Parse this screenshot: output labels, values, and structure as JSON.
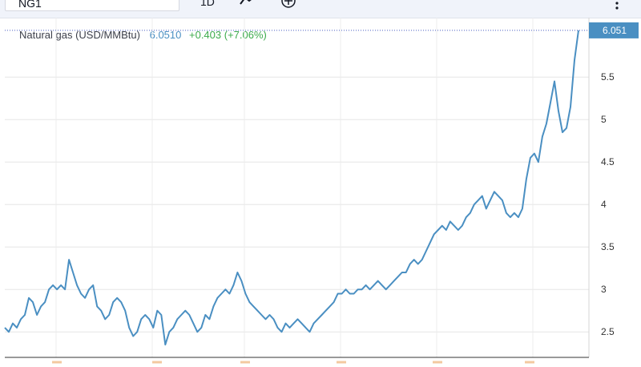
{
  "toolbar": {
    "symbol": "NG1",
    "interval": "1D",
    "chart_icon": "line-chart-icon",
    "compare_icon": "plus-circle-icon",
    "menu_icon": "vertical-dots-icon"
  },
  "legend": {
    "name": "Natural gas (USD/MMBtu)",
    "price": "6.0510",
    "change": "+0.403 (+7.06%)"
  },
  "colors": {
    "line": "#4a8fc2",
    "positive": "#3cab4c",
    "price_tag": "#4a8fc2"
  },
  "chart_data": {
    "type": "line",
    "title": "",
    "y_ticks": [
      "2.5",
      "3",
      "3.5",
      "4",
      "4.5",
      "5",
      "5.5"
    ],
    "ylim": [
      2.2,
      6.2
    ],
    "last_value_label": "6.051",
    "series": [
      {
        "values": [
          2.55,
          2.5,
          2.6,
          2.55,
          2.65,
          2.7,
          2.9,
          2.85,
          2.7,
          2.8,
          2.85,
          3.0,
          3.05,
          3.0,
          3.05,
          3.0,
          3.35,
          3.2,
          3.05,
          2.95,
          2.9,
          3.0,
          3.05,
          2.8,
          2.75,
          2.65,
          2.7,
          2.85,
          2.9,
          2.85,
          2.75,
          2.55,
          2.45,
          2.5,
          2.65,
          2.7,
          2.65,
          2.55,
          2.75,
          2.7,
          2.35,
          2.5,
          2.55,
          2.65,
          2.7,
          2.75,
          2.7,
          2.6,
          2.5,
          2.55,
          2.7,
          2.65,
          2.8,
          2.9,
          2.95,
          3.0,
          2.95,
          3.05,
          3.2,
          3.1,
          2.95,
          2.85,
          2.8,
          2.75,
          2.7,
          2.65,
          2.7,
          2.65,
          2.55,
          2.5,
          2.6,
          2.55,
          2.6,
          2.65,
          2.6,
          2.55,
          2.5,
          2.6,
          2.65,
          2.7,
          2.75,
          2.8,
          2.85,
          2.95,
          2.95,
          3.0,
          2.95,
          2.95,
          3.0,
          3.0,
          3.05,
          3.0,
          3.05,
          3.1,
          3.05,
          3.0,
          3.05,
          3.1,
          3.15,
          3.2,
          3.2,
          3.3,
          3.35,
          3.3,
          3.35,
          3.45,
          3.55,
          3.65,
          3.7,
          3.75,
          3.7,
          3.8,
          3.75,
          3.7,
          3.75,
          3.85,
          3.9,
          4.0,
          4.05,
          4.1,
          3.95,
          4.05,
          4.15,
          4.1,
          4.05,
          3.9,
          3.85,
          3.9,
          3.85,
          3.95,
          4.3,
          4.55,
          4.6,
          4.5,
          4.8,
          4.95,
          5.2,
          5.45,
          5.1,
          4.85,
          4.9,
          5.15,
          5.7,
          6.05
        ]
      }
    ]
  }
}
